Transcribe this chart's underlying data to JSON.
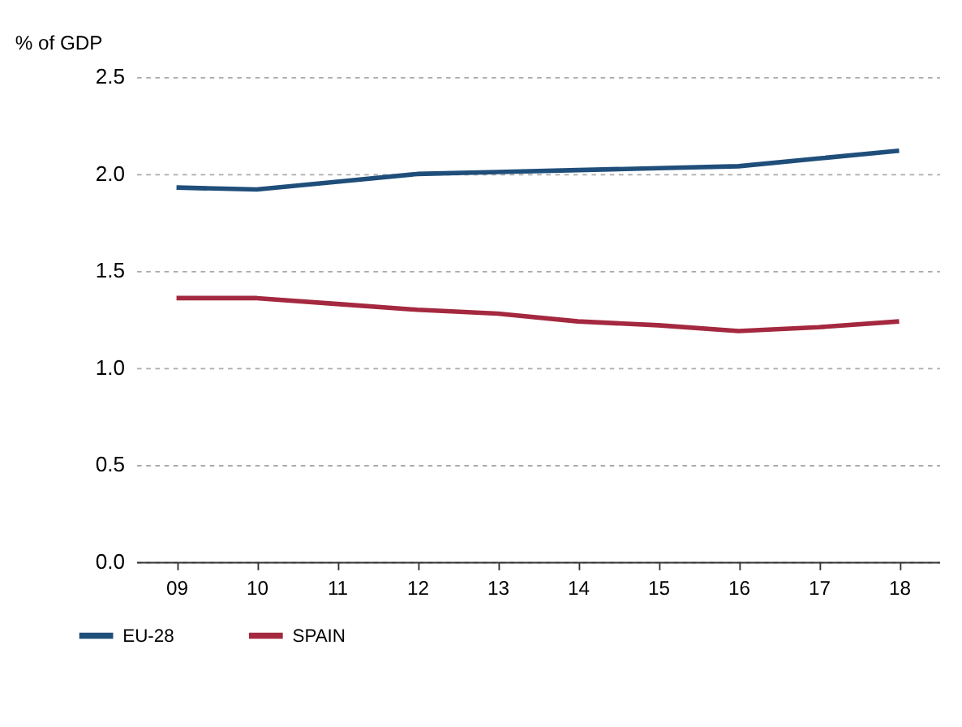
{
  "chart_data": {
    "type": "line",
    "ylabel": "% of GDP",
    "categories": [
      "09",
      "10",
      "11",
      "12",
      "13",
      "14",
      "15",
      "16",
      "17",
      "18"
    ],
    "series": [
      {
        "name": "EU-28",
        "color": "#1f4e7a",
        "values": [
          1.93,
          1.92,
          1.96,
          2.0,
          2.01,
          2.02,
          2.03,
          2.04,
          2.08,
          2.12
        ]
      },
      {
        "name": "SPAIN",
        "color": "#a4283f",
        "values": [
          1.36,
          1.36,
          1.33,
          1.3,
          1.28,
          1.24,
          1.22,
          1.19,
          1.21,
          1.24
        ]
      }
    ],
    "ylim": [
      0,
      2.5
    ],
    "yticks": [
      {
        "value": 0,
        "label": "0.0"
      },
      0.5,
      {
        "value": 1,
        "label": "1.0"
      },
      1.5,
      {
        "value": 2,
        "label": "2.0"
      },
      2.5
    ],
    "grid": "y",
    "legend": "bottom left",
    "marker": "none",
    "line_style": "solid"
  }
}
